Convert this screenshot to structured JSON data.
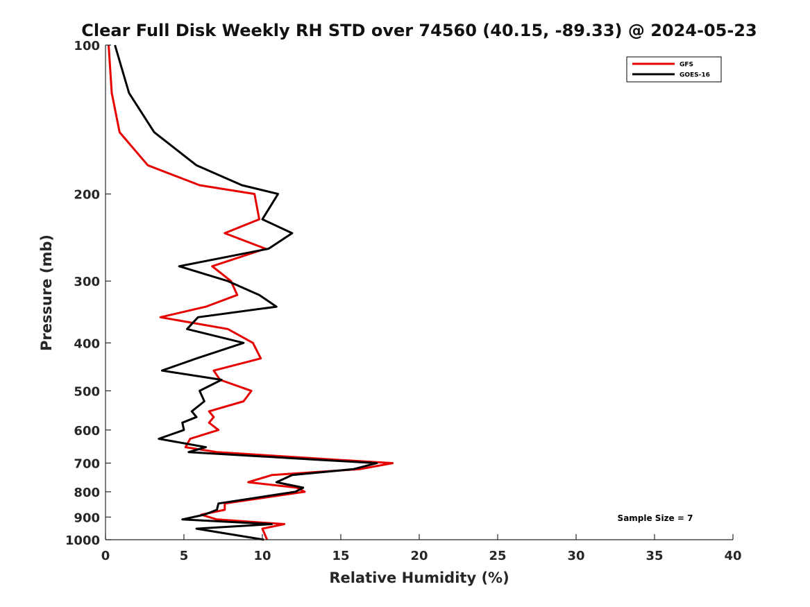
{
  "chart_data": {
    "type": "line",
    "title": "Clear Full Disk Weekly RH STD over 74560 (40.15, -89.33) @ 2024-05-23",
    "xlabel": "Relative Humidity (%)",
    "ylabel": "Pressure (mb)",
    "xlim": [
      0,
      40
    ],
    "ylim": [
      100,
      1000
    ],
    "yscale": "log",
    "y_reversed": true,
    "x_ticks": [
      "0",
      "5",
      "10",
      "15",
      "20",
      "25",
      "30",
      "35",
      "40"
    ],
    "y_ticks": [
      "100",
      "200",
      "300",
      "400",
      "500",
      "600",
      "700",
      "800",
      "900",
      "1000"
    ],
    "grid": false,
    "legend_position": "top-right",
    "annotation": "Sample Size = 7",
    "series": [
      {
        "name": "GFS",
        "color": "#e60000",
        "points": [
          [
            0.2,
            100
          ],
          [
            0.4,
            125
          ],
          [
            0.9,
            150
          ],
          [
            2.7,
            175
          ],
          [
            6.0,
            192
          ],
          [
            9.5,
            200
          ],
          [
            9.8,
            225
          ],
          [
            7.6,
            240
          ],
          [
            10.2,
            258
          ],
          [
            6.8,
            280
          ],
          [
            8.0,
            300
          ],
          [
            8.4,
            320
          ],
          [
            6.4,
            338
          ],
          [
            3.5,
            355
          ],
          [
            7.8,
            375
          ],
          [
            9.4,
            400
          ],
          [
            9.9,
            430
          ],
          [
            6.9,
            455
          ],
          [
            7.3,
            475
          ],
          [
            9.3,
            500
          ],
          [
            8.8,
            525
          ],
          [
            6.6,
            550
          ],
          [
            6.9,
            565
          ],
          [
            6.6,
            580
          ],
          [
            7.2,
            600
          ],
          [
            5.4,
            625
          ],
          [
            5.1,
            650
          ],
          [
            7.1,
            665
          ],
          [
            15.0,
            690
          ],
          [
            18.3,
            700
          ],
          [
            16.2,
            720
          ],
          [
            10.6,
            740
          ],
          [
            9.1,
            765
          ],
          [
            12.2,
            785
          ],
          [
            12.7,
            800
          ],
          [
            7.6,
            845
          ],
          [
            7.6,
            870
          ],
          [
            6.1,
            890
          ],
          [
            7.1,
            910
          ],
          [
            11.4,
            930
          ],
          [
            10.0,
            950
          ],
          [
            10.3,
            1000
          ]
        ]
      },
      {
        "name": "GOES-16",
        "color": "#000000",
        "points": [
          [
            0.6,
            100
          ],
          [
            1.5,
            125
          ],
          [
            3.1,
            150
          ],
          [
            5.8,
            175
          ],
          [
            8.7,
            192
          ],
          [
            11.0,
            200
          ],
          [
            10.0,
            225
          ],
          [
            11.9,
            240
          ],
          [
            10.4,
            258
          ],
          [
            4.7,
            280
          ],
          [
            7.8,
            300
          ],
          [
            9.8,
            320
          ],
          [
            10.9,
            338
          ],
          [
            5.9,
            355
          ],
          [
            5.2,
            375
          ],
          [
            8.8,
            400
          ],
          [
            5.8,
            430
          ],
          [
            3.6,
            455
          ],
          [
            7.4,
            475
          ],
          [
            6.0,
            500
          ],
          [
            6.3,
            525
          ],
          [
            5.5,
            550
          ],
          [
            5.8,
            565
          ],
          [
            4.9,
            580
          ],
          [
            5.0,
            600
          ],
          [
            3.4,
            625
          ],
          [
            6.4,
            650
          ],
          [
            5.3,
            665
          ],
          [
            13.8,
            690
          ],
          [
            17.3,
            700
          ],
          [
            15.8,
            720
          ],
          [
            11.9,
            740
          ],
          [
            10.9,
            765
          ],
          [
            12.6,
            785
          ],
          [
            12.1,
            800
          ],
          [
            7.2,
            845
          ],
          [
            7.1,
            870
          ],
          [
            6.3,
            890
          ],
          [
            4.9,
            910
          ],
          [
            10.6,
            930
          ],
          [
            5.8,
            950
          ],
          [
            10.1,
            1000
          ]
        ]
      }
    ]
  }
}
